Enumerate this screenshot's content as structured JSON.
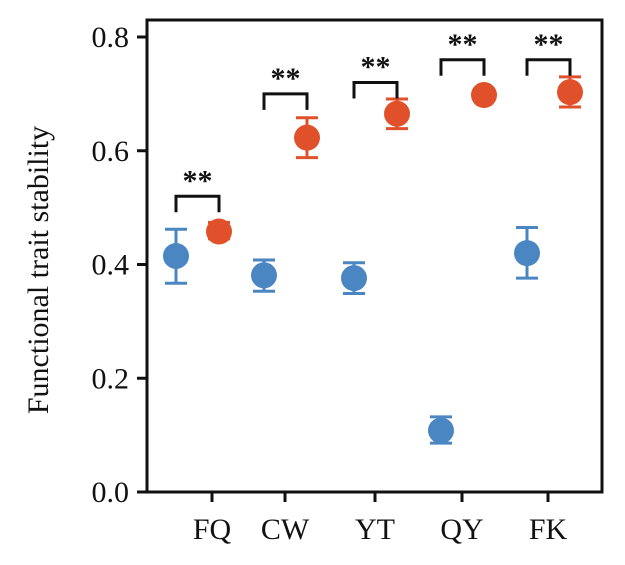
{
  "chart_data": {
    "type": "scatter",
    "ylabel": "Functional trait stability",
    "ylim": [
      0,
      0.8
    ],
    "y_ticks": [
      0.0,
      0.2,
      0.4,
      0.6,
      0.8
    ],
    "y_tick_labels": [
      "0.0",
      "0.2",
      "0.4",
      "0.6",
      "0.8"
    ],
    "categories": [
      "FQ",
      "CW",
      "YT",
      "QY",
      "FK"
    ],
    "grid": false,
    "series": [
      {
        "color": "#4a86c2",
        "values": [
          0.415,
          0.381,
          0.376,
          0.108,
          0.42
        ],
        "err_low": [
          0.367,
          0.353,
          0.349,
          0.086,
          0.376
        ],
        "err_high": [
          0.462,
          0.408,
          0.403,
          0.132,
          0.465
        ]
      },
      {
        "color": "#e0512b",
        "values": [
          0.458,
          0.623,
          0.665,
          0.698,
          0.703
        ],
        "err_low": [
          0.445,
          0.588,
          0.639,
          0.689,
          0.677
        ],
        "err_high": [
          0.474,
          0.658,
          0.691,
          0.707,
          0.73
        ]
      }
    ],
    "significance": [
      {
        "category": "FQ",
        "label": "**",
        "bracket_y": 0.52
      },
      {
        "category": "CW",
        "label": "**",
        "bracket_y": 0.7
      },
      {
        "category": "YT",
        "label": "**",
        "bracket_y": 0.72
      },
      {
        "category": "QY",
        "label": "**",
        "bracket_y": 0.76
      },
      {
        "category": "FK",
        "label": "**",
        "bracket_y": 0.76
      }
    ]
  }
}
